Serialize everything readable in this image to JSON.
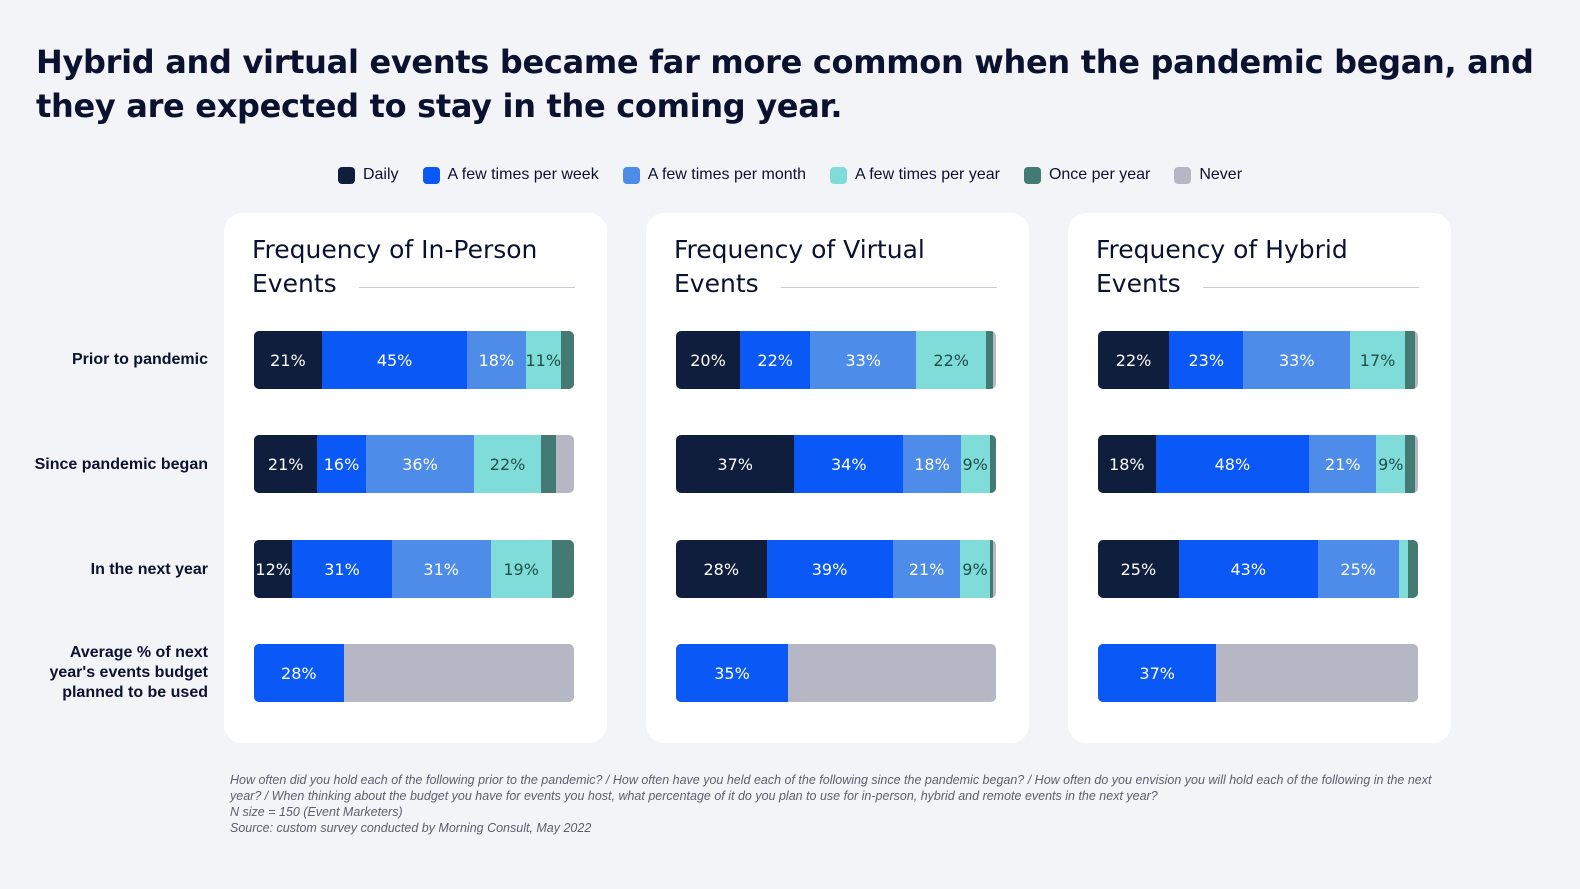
{
  "title": "Hybrid and virtual events became far more common when the pandemic began, and they are expected to stay in the coming year.",
  "colors": {
    "daily": "#0f1e3c",
    "week": "#0a58f5",
    "month": "#4d8ce8",
    "year": "#7fdcd8",
    "once": "#437a73",
    "never": "#b6b7c4"
  },
  "legend": [
    {
      "key": "daily",
      "label": "Daily"
    },
    {
      "key": "week",
      "label": "A few times per week"
    },
    {
      "key": "month",
      "label": "A few times per month"
    },
    {
      "key": "year",
      "label": "A few times per year"
    },
    {
      "key": "once",
      "label": "Once per year"
    },
    {
      "key": "never",
      "label": "Never"
    }
  ],
  "row_labels": [
    "Prior to pandemic",
    "Since pandemic began",
    "In the next year",
    "Average % of next\nyear's events budget\nplanned to be used"
  ],
  "chart_data": {
    "type": "bar",
    "orientation": "horizontal-stacked",
    "series_names": [
      "Daily",
      "A few times per week",
      "A few times per month",
      "A few times per year",
      "Once per year",
      "Never"
    ],
    "categories": [
      "Prior to pandemic",
      "Since pandemic began",
      "In the next year"
    ],
    "panels": [
      {
        "title": "Frequency of In-Person Events",
        "rows": [
          {
            "category": "Prior to pandemic",
            "values": [
              21,
              45,
              18,
              11,
              4,
              0
            ],
            "labels": [
              "21%",
              "45%",
              "18%",
              "11%",
              "",
              ""
            ]
          },
          {
            "category": "Since pandemic began",
            "values": [
              21,
              16,
              36,
              22,
              5,
              6
            ],
            "labels": [
              "21%",
              "16%",
              "36%",
              "22%",
              "",
              ""
            ]
          },
          {
            "category": "In the next year",
            "values": [
              12,
              31,
              31,
              19,
              7,
              0
            ],
            "labels": [
              "12%",
              "31%",
              "31%",
              "19%",
              "",
              ""
            ]
          }
        ],
        "budget": {
          "label": "Average % of next year's events budget planned to be used",
          "value": 28,
          "text": "28%"
        }
      },
      {
        "title": "Frequency of Virtual Events",
        "rows": [
          {
            "category": "Prior to pandemic",
            "values": [
              20,
              22,
              33,
              22,
              2,
              1
            ],
            "labels": [
              "20%",
              "22%",
              "33%",
              "22%",
              "",
              ""
            ]
          },
          {
            "category": "Since pandemic began",
            "values": [
              37,
              34,
              18,
              9,
              2,
              0
            ],
            "labels": [
              "37%",
              "34%",
              "18%",
              "9%",
              "",
              ""
            ]
          },
          {
            "category": "In the next year",
            "values": [
              28,
              39,
              21,
              9,
              1,
              1
            ],
            "labels": [
              "28%",
              "39%",
              "21%",
              "9%",
              "",
              ""
            ]
          }
        ],
        "budget": {
          "label": "Average % of next year's events budget planned to be used",
          "value": 35,
          "text": "35%"
        }
      },
      {
        "title": "Frequency of Hybrid Events",
        "rows": [
          {
            "category": "Prior to pandemic",
            "values": [
              22,
              23,
              33,
              17,
              3,
              1
            ],
            "labels": [
              "22%",
              "23%",
              "33%",
              "17%",
              "",
              ""
            ]
          },
          {
            "category": "Since pandemic began",
            "values": [
              18,
              48,
              21,
              9,
              3,
              1
            ],
            "labels": [
              "18%",
              "48%",
              "21%",
              "9%",
              "",
              ""
            ]
          },
          {
            "category": "In the next year",
            "values": [
              25,
              43,
              25,
              3,
              3,
              0
            ],
            "labels": [
              "25%",
              "43%",
              "25%",
              "",
              "",
              ""
            ]
          }
        ],
        "budget": {
          "label": "Average % of next year's events budget planned to be used",
          "value": 37,
          "text": "37%"
        }
      }
    ],
    "xlim": [
      0,
      100
    ],
    "legend_position": "top-center",
    "grid": false
  },
  "footnote": [
    "How often did you hold each of the following prior to the pandemic? / How often have you held each of the following since the pandemic began? / How often do you envision you will hold each of the following in the next year? / When thinking about the budget you have for events you host, what percentage of it do you plan to use for in-person, hybrid and remote events in the next year?",
    "N size = 150 (Event Marketers)",
    "Source: custom survey conducted by Morning Consult, May 2022"
  ]
}
